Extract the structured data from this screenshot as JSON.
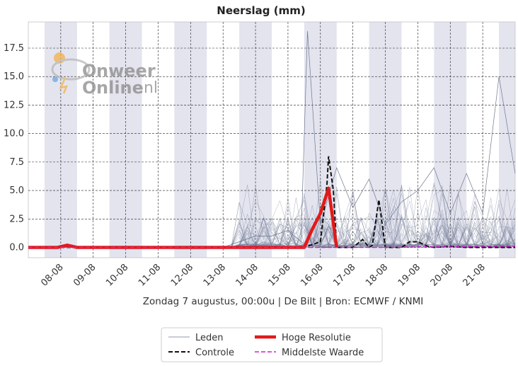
{
  "chart_data": {
    "type": "line",
    "title": "Neerslag (mm)",
    "subtitle": "Zondag 7 augustus, 00:00u  | De Bilt | Bron: ECMWF / KNMI",
    "xlabel": "",
    "ylabel": "",
    "ylim": [
      -0.9,
      19.8
    ],
    "yticks": [
      0.0,
      2.5,
      5.0,
      7.5,
      10.0,
      12.5,
      15.0,
      17.5
    ],
    "ytick_labels": [
      "0.0",
      "2.5",
      "5.0",
      "7.5",
      "10.0",
      "12.5",
      "15.0",
      "17.5"
    ],
    "x_unit": "days since 07-08 00:00",
    "xlim": [
      0.0,
      15.0
    ],
    "xticks": [
      1,
      2,
      3,
      4,
      5,
      6,
      7,
      8,
      9,
      10,
      11,
      12,
      13,
      14
    ],
    "xtick_labels": [
      "08-08",
      "09-08",
      "10-08",
      "11-08",
      "12-08",
      "13-08",
      "14-08",
      "15-08",
      "16-08",
      "17-08",
      "18-08",
      "19-08",
      "20-08",
      "21-08"
    ],
    "grid": true,
    "shaded_bands_x": [
      [
        0.5,
        1.5
      ],
      [
        2.5,
        3.5
      ],
      [
        4.5,
        5.5
      ],
      [
        6.5,
        7.5
      ],
      [
        8.5,
        9.5
      ],
      [
        10.5,
        11.5
      ],
      [
        12.5,
        13.5
      ],
      [
        14.5,
        15.0
      ]
    ],
    "legend_position": "bottom-center",
    "series": [
      {
        "name": "Leden",
        "style": "thin-line",
        "color": "#6e7791",
        "x": [
          0,
          6,
          6.5,
          7.0,
          7.5,
          8.0,
          8.4,
          8.6,
          9.0,
          9.5,
          10.0,
          10.5,
          11.0,
          11.5,
          12.0,
          12.5,
          13.0,
          13.5,
          14.0,
          14.5,
          15.0
        ],
        "y": [
          0.0,
          0.0,
          0.5,
          1.0,
          1.0,
          1.5,
          0.5,
          19.0,
          2.0,
          7.0,
          3.5,
          6.0,
          2.0,
          4.0,
          5.0,
          7.0,
          3.0,
          6.5,
          3.0,
          15.0,
          6.5
        ]
      },
      {
        "name": "Controle",
        "style": "dashed",
        "color": "#111111",
        "x": [
          0,
          8.5,
          9.0,
          9.1,
          9.2,
          9.25,
          9.4,
          9.5,
          10.0,
          10.3,
          10.5,
          10.6,
          10.8,
          11.0,
          11.5,
          11.75,
          12.0,
          12.3,
          12.5,
          13.0,
          13.5,
          14.0,
          14.5,
          15.0
        ],
        "y": [
          0.0,
          0.0,
          0.5,
          3.0,
          5.5,
          8.0,
          5.0,
          0.0,
          0.0,
          0.7,
          0.0,
          0.2,
          4.2,
          0.0,
          0.0,
          0.5,
          0.5,
          0.1,
          0.0,
          0.1,
          0.0,
          0.0,
          0.0,
          0.0
        ]
      },
      {
        "name": "Hoge Resolutie",
        "style": "thick-line",
        "color": "#e11a1a",
        "x": [
          0,
          0.9,
          1.2,
          1.5,
          8.5,
          8.75,
          9.0,
          9.25,
          9.5
        ],
        "y": [
          0.0,
          0.0,
          0.2,
          0.0,
          0.0,
          1.6,
          3.0,
          5.2,
          0.0
        ]
      },
      {
        "name": "Middelste Waarde",
        "style": "dashed",
        "color": "#cc22cc",
        "x": [
          0,
          11.0,
          12.0,
          13.0,
          14.0,
          15.0
        ],
        "y": [
          0.0,
          0.0,
          0.05,
          0.05,
          0.1,
          0.1
        ]
      }
    ]
  },
  "logo": {
    "text_line1": "nweer",
    "text_line2": "nline",
    "suffix": ".nl",
    "letter": "O"
  },
  "colors": {
    "band": "#e3e4ee",
    "grid": "#222222",
    "axis": "#cccccc"
  }
}
